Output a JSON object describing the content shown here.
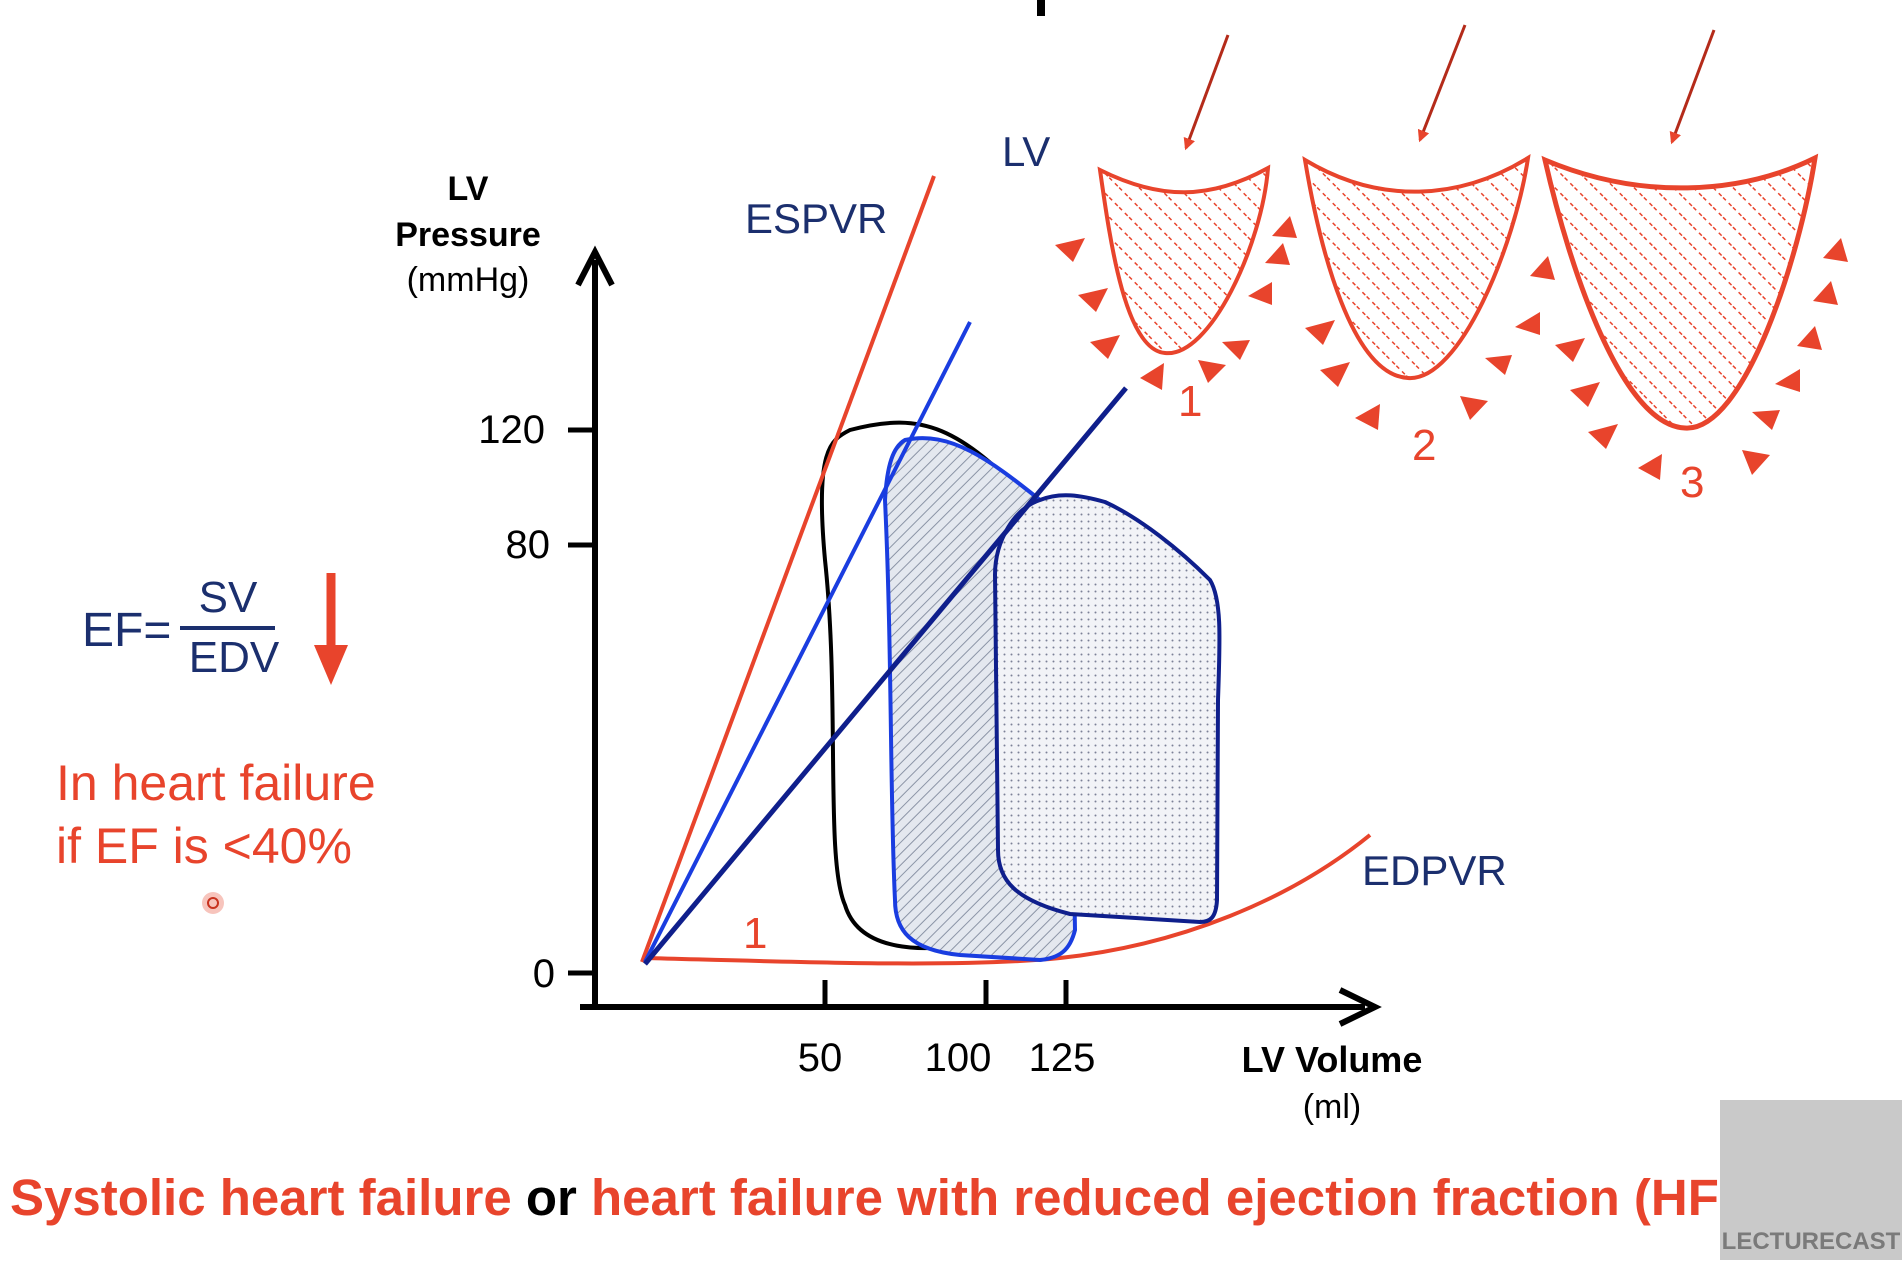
{
  "axes": {
    "y_label_line1": "LV",
    "y_label_line2": "Pressure",
    "y_unit": "(mmHg)",
    "y_ticks": [
      "120",
      "80",
      "0"
    ],
    "x_label": "LV Volume",
    "x_unit": "(ml)",
    "x_ticks": [
      "50",
      "100",
      "125"
    ]
  },
  "curve_labels": {
    "espvr": "ESPVR",
    "edpvr": "EDPVR",
    "lv": "LV",
    "marker_1": "1"
  },
  "ventricle_numbers": [
    "1",
    "2",
    "3"
  ],
  "formula": {
    "lhs": "EF=",
    "numerator": "SV",
    "denominator": "EDV"
  },
  "note": {
    "line1": "In heart failure",
    "line2": "if EF is <40%"
  },
  "footer": {
    "part1": "Systolic heart failure",
    "part2": " or ",
    "part3": "heart failure with reduced ejection fraction (HFrEF)"
  },
  "watermark": "LECTURECAST",
  "colors": {
    "red": "#e8442c",
    "dark_blue": "#1b2f6e",
    "blue": "#1a3de0",
    "navy": "#0f1f8c"
  }
}
